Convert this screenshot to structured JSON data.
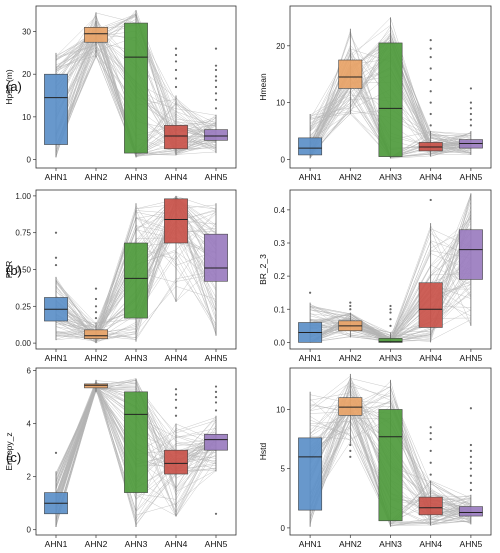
{
  "figure": {
    "row_labels": [
      "(a)",
      "(b)",
      "(c)"
    ]
  },
  "colors": {
    "AHN1": "#5b8fc8",
    "AHN2": "#e8a367",
    "AHN3": "#4e9a3c",
    "AHN4": "#c9524a",
    "AHN5": "#9a7cbf",
    "line": "#b4b4b4",
    "median": "#222222",
    "outlier": "#666666"
  },
  "chart_data": [
    {
      "type": "box",
      "ylabel": "Hp95 (m)",
      "categories": [
        "AHN1",
        "AHN2",
        "AHN3",
        "AHN4",
        "AHN5"
      ],
      "ylim": [
        -2,
        36
      ],
      "yticks": [
        0,
        10,
        20,
        30
      ],
      "boxes": [
        {
          "q1": 3.5,
          "median": 14.5,
          "q3": 20.0,
          "whisker_low": 0.5,
          "whisker_high": 25.0
        },
        {
          "q1": 27.5,
          "median": 29.5,
          "q3": 31.0,
          "whisker_low": 24.0,
          "whisker_high": 34.5
        },
        {
          "q1": 1.5,
          "median": 24.0,
          "q3": 32.0,
          "whisker_low": 0.5,
          "whisker_high": 35.0
        },
        {
          "q1": 2.5,
          "median": 5.5,
          "q3": 8.0,
          "whisker_low": 1.0,
          "whisker_high": 15.0
        },
        {
          "q1": 4.5,
          "median": 5.5,
          "q3": 7.0,
          "whisker_low": 1.5,
          "whisker_high": 10.5
        }
      ],
      "outliers": [
        [],
        [],
        [],
        [
          17,
          19,
          21,
          23,
          24.5,
          26
        ],
        [
          12,
          14,
          15.5,
          17,
          18.5,
          19.5,
          21,
          22,
          26
        ]
      ]
    },
    {
      "type": "box",
      "ylabel": "Hmean",
      "categories": [
        "AHN1",
        "AHN2",
        "AHN3",
        "AHN4",
        "AHN5"
      ],
      "ylim": [
        -1.5,
        27
      ],
      "yticks": [
        0,
        10,
        20
      ],
      "boxes": [
        {
          "q1": 0.8,
          "median": 2.0,
          "q3": 3.8,
          "whisker_low": 0.2,
          "whisker_high": 8.0
        },
        {
          "q1": 12.5,
          "median": 14.5,
          "q3": 17.5,
          "whisker_low": 8.0,
          "whisker_high": 23.0
        },
        {
          "q1": 0.5,
          "median": 9.0,
          "q3": 20.5,
          "whisker_low": 0.2,
          "whisker_high": 25.0
        },
        {
          "q1": 1.5,
          "median": 2.2,
          "q3": 3.0,
          "whisker_low": 0.5,
          "whisker_high": 5.0
        },
        {
          "q1": 2.0,
          "median": 2.8,
          "q3": 3.5,
          "whisker_low": 0.8,
          "whisker_high": 5.0
        }
      ],
      "outliers": [
        [],
        [],
        [],
        [
          6,
          8,
          10,
          12,
          14,
          16,
          18,
          19.5,
          21
        ],
        [
          6,
          7,
          8,
          9,
          10,
          12.5
        ]
      ]
    },
    {
      "type": "box",
      "ylabel": "PPR",
      "categories": [
        "AHN1",
        "AHN2",
        "AHN3",
        "AHN4",
        "AHN5"
      ],
      "ylim": [
        -0.04,
        1.04
      ],
      "yticks": [
        0.0,
        0.25,
        0.5,
        0.75,
        1.0
      ],
      "tick_labels": [
        "0.00",
        "0.25",
        "0.50",
        "0.75",
        "1.00"
      ],
      "boxes": [
        {
          "q1": 0.15,
          "median": 0.23,
          "q3": 0.31,
          "whisker_low": 0.02,
          "whisker_high": 0.45
        },
        {
          "q1": 0.03,
          "median": 0.05,
          "q3": 0.09,
          "whisker_low": 0.0,
          "whisker_high": 0.14
        },
        {
          "q1": 0.17,
          "median": 0.44,
          "q3": 0.68,
          "whisker_low": 0.01,
          "whisker_high": 0.95
        },
        {
          "q1": 0.68,
          "median": 0.84,
          "q3": 0.98,
          "whisker_low": 0.28,
          "whisker_high": 1.0
        },
        {
          "q1": 0.42,
          "median": 0.51,
          "q3": 0.74,
          "whisker_low": 0.05,
          "whisker_high": 0.95
        }
      ],
      "outliers": [
        [
          0.53,
          0.58,
          0.75
        ],
        [
          0.17,
          0.21,
          0.25,
          0.3,
          0.37
        ],
        [],
        [],
        []
      ]
    },
    {
      "type": "box",
      "ylabel": "BR_2_3",
      "categories": [
        "AHN1",
        "AHN2",
        "AHN3",
        "AHN4",
        "AHN5"
      ],
      "ylim": [
        -0.02,
        0.46
      ],
      "yticks": [
        0.0,
        0.1,
        0.2,
        0.3,
        0.4
      ],
      "tick_labels": [
        "0.0",
        "0.1",
        "0.2",
        "0.3",
        "0.4"
      ],
      "boxes": [
        {
          "q1": 0.0,
          "median": 0.03,
          "q3": 0.06,
          "whisker_low": 0.0,
          "whisker_high": 0.12
        },
        {
          "q1": 0.035,
          "median": 0.05,
          "q3": 0.065,
          "whisker_low": 0.015,
          "whisker_high": 0.09
        },
        {
          "q1": 0.0,
          "median": 0.002,
          "q3": 0.012,
          "whisker_low": 0.0,
          "whisker_high": 0.03
        },
        {
          "q1": 0.045,
          "median": 0.1,
          "q3": 0.18,
          "whisker_low": 0.0,
          "whisker_high": 0.36
        },
        {
          "q1": 0.19,
          "median": 0.28,
          "q3": 0.34,
          "whisker_low": 0.05,
          "whisker_high": 0.45
        }
      ],
      "outliers": [
        [
          0.15
        ],
        [
          0.1,
          0.11,
          0.12
        ],
        [
          0.05,
          0.07,
          0.09,
          0.1,
          0.11
        ],
        [
          0.43
        ],
        []
      ]
    },
    {
      "type": "box",
      "ylabel": "Entropy_z",
      "categories": [
        "AHN1",
        "AHN2",
        "AHN3",
        "AHN4",
        "AHN5"
      ],
      "ylim": [
        -0.2,
        6.1
      ],
      "yticks": [
        0,
        2,
        4,
        6
      ],
      "boxes": [
        {
          "q1": 0.6,
          "median": 1.0,
          "q3": 1.4,
          "whisker_low": 0.1,
          "whisker_high": 2.2
        },
        {
          "q1": 5.35,
          "median": 5.45,
          "q3": 5.5,
          "whisker_low": 5.2,
          "whisker_high": 5.65
        },
        {
          "q1": 1.4,
          "median": 4.35,
          "q3": 5.2,
          "whisker_low": 0.1,
          "whisker_high": 5.7
        },
        {
          "q1": 2.1,
          "median": 2.5,
          "q3": 3.0,
          "whisker_low": 0.5,
          "whisker_high": 4.0
        },
        {
          "q1": 3.0,
          "median": 3.4,
          "q3": 3.6,
          "whisker_low": 2.2,
          "whisker_high": 4.3
        }
      ],
      "outliers": [
        [
          2.9
        ],
        [],
        [],
        [
          4.3,
          4.6,
          4.9,
          5.1,
          5.3
        ],
        [
          0.6,
          4.5,
          4.8,
          5.0,
          5.2,
          5.4
        ]
      ]
    },
    {
      "type": "box",
      "ylabel": "Hstd",
      "categories": [
        "AHN1",
        "AHN2",
        "AHN3",
        "AHN4",
        "AHN5"
      ],
      "ylim": [
        -0.6,
        13.5
      ],
      "yticks": [
        0,
        5,
        10
      ],
      "boxes": [
        {
          "q1": 1.5,
          "median": 6.0,
          "q3": 7.6,
          "whisker_low": 0.1,
          "whisker_high": 11.5
        },
        {
          "q1": 9.5,
          "median": 10.2,
          "q3": 11.0,
          "whisker_low": 7.0,
          "whisker_high": 13.0
        },
        {
          "q1": 0.6,
          "median": 7.7,
          "q3": 10.0,
          "whisker_low": 0.1,
          "whisker_high": 12.5
        },
        {
          "q1": 1.1,
          "median": 1.7,
          "q3": 2.6,
          "whisker_low": 0.2,
          "whisker_high": 4.0
        },
        {
          "q1": 1.0,
          "median": 1.3,
          "q3": 1.8,
          "whisker_low": 0.3,
          "whisker_high": 2.8
        }
      ],
      "outliers": [
        [],
        [
          6.0,
          6.5,
          7.0
        ],
        [],
        [
          4.5,
          5.5,
          6.5,
          7.5,
          8.0,
          8.5
        ],
        [
          3.2,
          3.8,
          4.4,
          5.0,
          5.5,
          6.0,
          6.5,
          7.0,
          10.1
        ]
      ]
    }
  ]
}
